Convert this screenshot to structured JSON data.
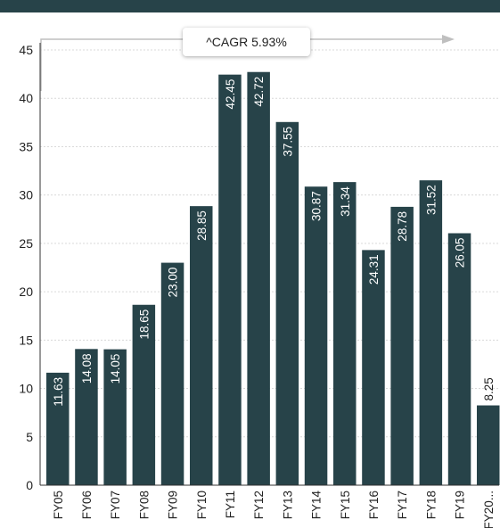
{
  "header": {
    "title": ""
  },
  "annotation": {
    "cagr_label": "^CAGR 5.93%"
  },
  "colors": {
    "bar": "#274349",
    "header": "#274349",
    "axis": "#333333",
    "grid": "#d9d9d9",
    "annotation_arrow": "#bfbfbf"
  },
  "chart_data": {
    "type": "bar",
    "title": "",
    "xlabel": "",
    "ylabel": "",
    "ylim": [
      0,
      45
    ],
    "yticks": [
      0,
      5,
      10,
      15,
      20,
      25,
      30,
      35,
      40,
      45
    ],
    "grid": true,
    "legend": "none",
    "categories": [
      "FY05",
      "FY06",
      "FY07",
      "FY08",
      "FY09",
      "FY10",
      "FY11",
      "FY12",
      "FY13",
      "FY14",
      "FY15",
      "FY16",
      "FY17",
      "FY18",
      "FY19",
      "FY20..."
    ],
    "values": [
      11.63,
      14.08,
      14.05,
      18.65,
      23.0,
      28.85,
      42.45,
      42.72,
      37.55,
      30.87,
      31.34,
      24.31,
      28.78,
      31.52,
      26.05,
      8.25
    ],
    "data_labels": [
      "11.63",
      "14.08",
      "14.05",
      "18.65",
      "23.00",
      "28.85",
      "42.45",
      "42.72",
      "37.55",
      "30.87",
      "31.34",
      "24.31",
      "28.78",
      "31.52",
      "26.05",
      "8.25"
    ]
  }
}
